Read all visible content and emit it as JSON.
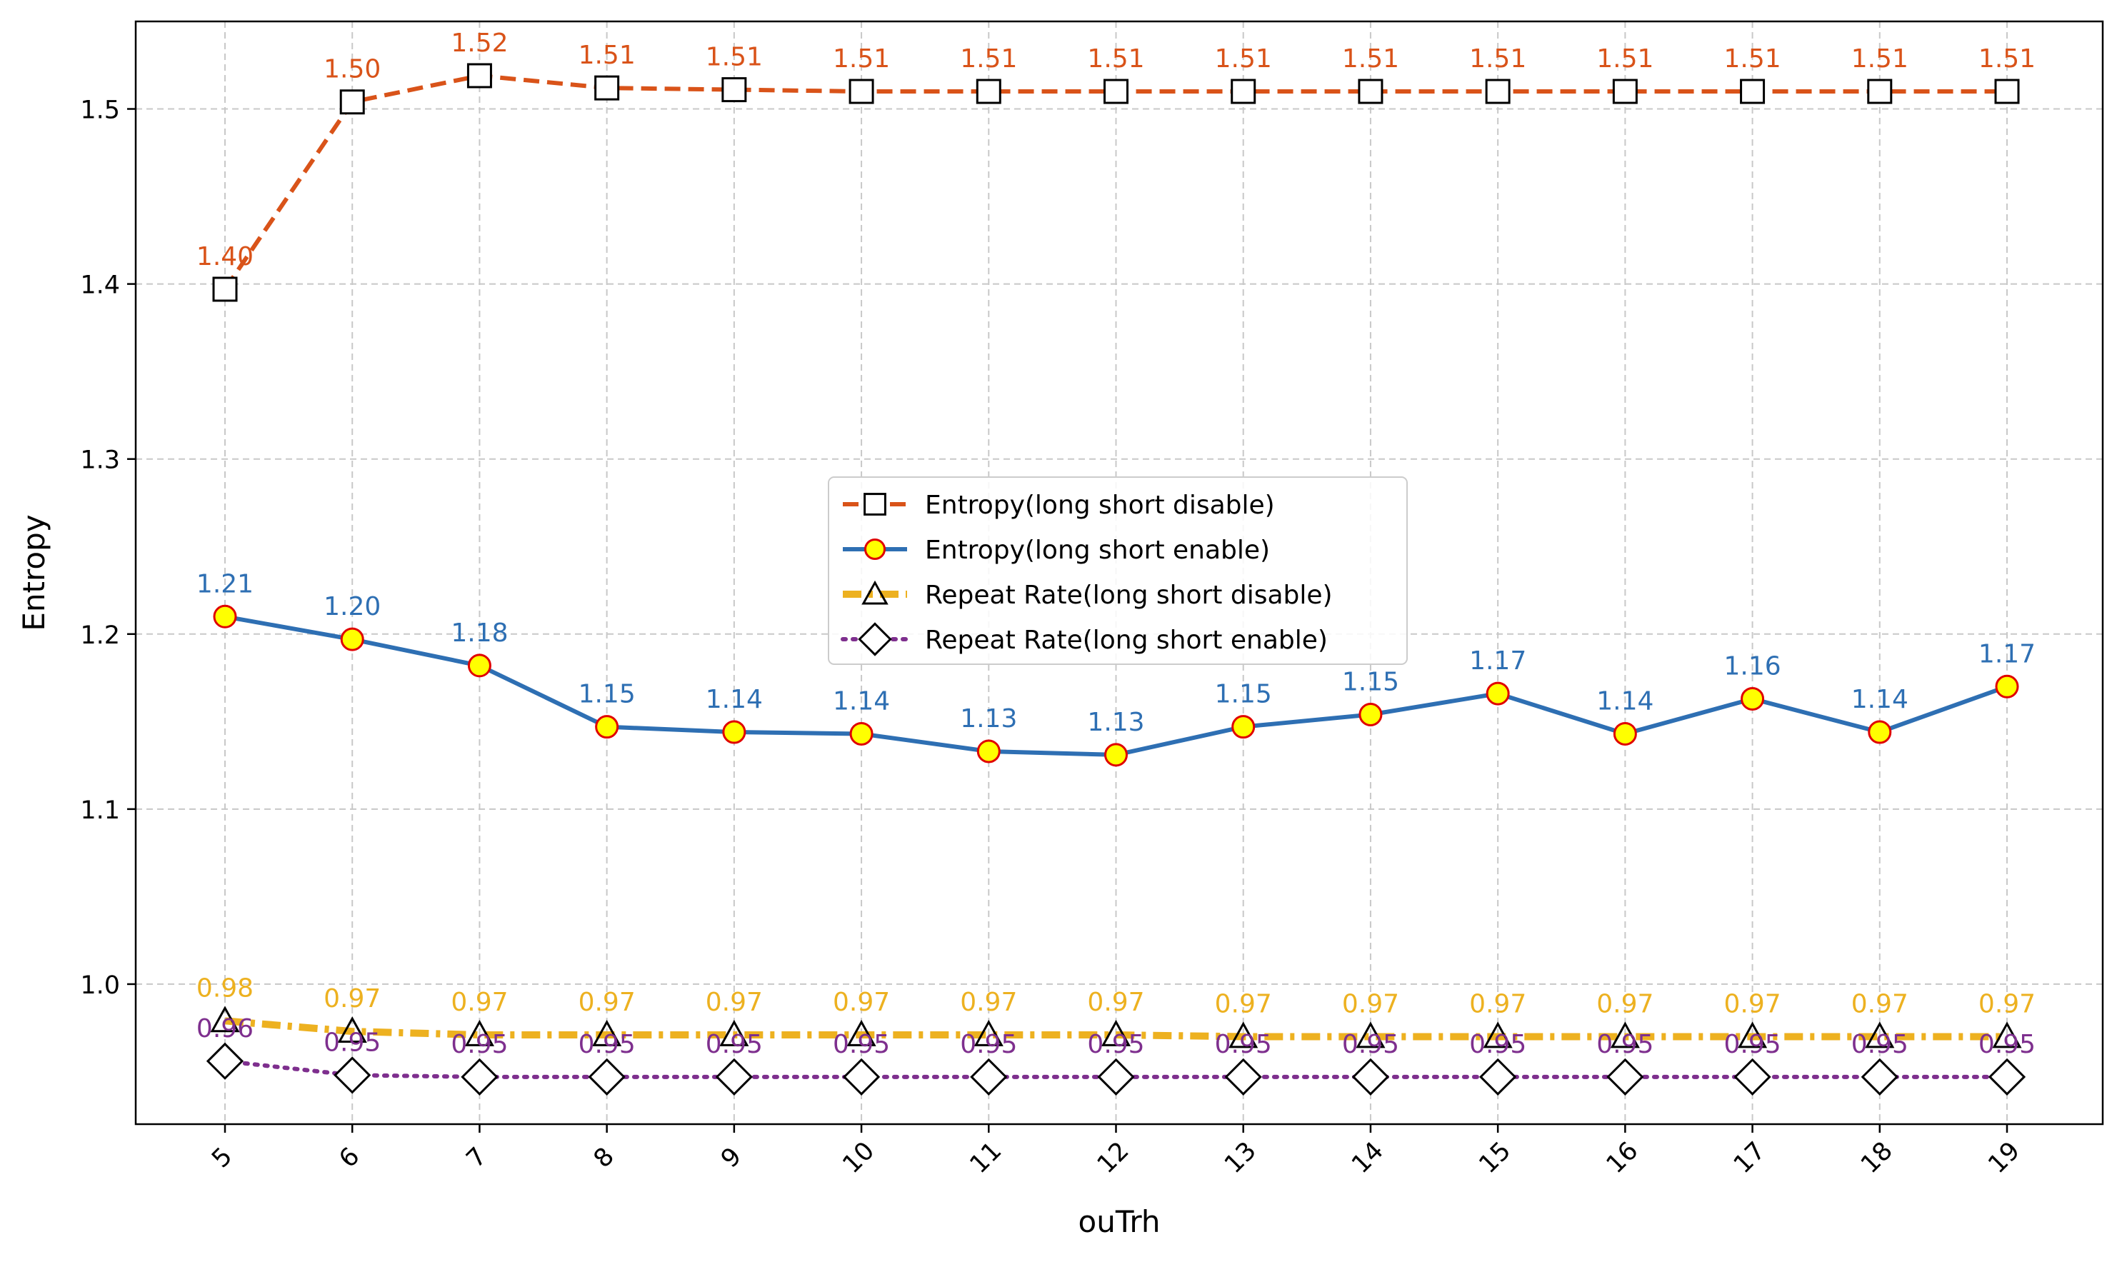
{
  "chart_data": {
    "type": "line",
    "title": "",
    "xlabel": "ouTrh",
    "ylabel": "Entropy",
    "x": [
      5,
      6,
      7,
      8,
      9,
      10,
      11,
      12,
      13,
      14,
      15,
      16,
      17,
      18,
      19
    ],
    "x_tick_labels": [
      "5",
      "6",
      "7",
      "8",
      "9",
      "10",
      "11",
      "12",
      "13",
      "14",
      "15",
      "16",
      "17",
      "18",
      "19"
    ],
    "y_ticks": [
      "1.0",
      "1.1",
      "1.2",
      "1.3",
      "1.4",
      "1.5"
    ],
    "ylim": [
      0.92,
      1.55
    ],
    "grid": true,
    "legend_position": "center",
    "series": [
      {
        "name": "Entropy(long short disable)",
        "values": [
          1.397,
          1.504,
          1.519,
          1.512,
          1.511,
          1.51,
          1.51,
          1.51,
          1.51,
          1.51,
          1.51,
          1.51,
          1.51,
          1.51,
          1.51
        ],
        "labels": [
          "1.40",
          "1.50",
          "1.52",
          "1.51",
          "1.51",
          "1.51",
          "1.51",
          "1.51",
          "1.51",
          "1.51",
          "1.51",
          "1.51",
          "1.51",
          "1.51",
          "1.51"
        ],
        "color": "#d95319",
        "marker": "square",
        "line_style": "dashed"
      },
      {
        "name": "Entropy(long short enable)",
        "values": [
          1.21,
          1.197,
          1.182,
          1.147,
          1.144,
          1.143,
          1.133,
          1.131,
          1.147,
          1.154,
          1.166,
          1.143,
          1.163,
          1.144,
          1.17
        ],
        "labels": [
          "1.21",
          "1.20",
          "1.18",
          "1.15",
          "1.14",
          "1.14",
          "1.13",
          "1.13",
          "1.15",
          "1.15",
          "1.17",
          "1.14",
          "1.16",
          "1.14",
          "1.17"
        ],
        "color": "#2e6fb3",
        "marker": "circle",
        "line_style": "solid"
      },
      {
        "name": "Repeat Rate(long short disable)",
        "values": [
          0.979,
          0.973,
          0.971,
          0.971,
          0.971,
          0.971,
          0.971,
          0.971,
          0.97,
          0.97,
          0.97,
          0.97,
          0.97,
          0.97,
          0.97
        ],
        "labels": [
          "0.98",
          "0.97",
          "0.97",
          "0.97",
          "0.97",
          "0.97",
          "0.97",
          "0.97",
          "0.97",
          "0.97",
          "0.97",
          "0.97",
          "0.97",
          "0.97",
          "0.97"
        ],
        "color": "#edb120",
        "marker": "triangle",
        "line_style": "dashdot"
      },
      {
        "name": "Repeat Rate(long short enable)",
        "values": [
          0.956,
          0.948,
          0.947,
          0.947,
          0.947,
          0.947,
          0.947,
          0.947,
          0.947,
          0.947,
          0.947,
          0.947,
          0.947,
          0.947,
          0.947
        ],
        "labels": [
          "0.96",
          "0.95",
          "0.95",
          "0.95",
          "0.95",
          "0.95",
          "0.95",
          "0.95",
          "0.95",
          "0.95",
          "0.95",
          "0.95",
          "0.95",
          "0.95",
          "0.95"
        ],
        "color": "#7e2f8e",
        "marker": "diamond",
        "line_style": "dotted"
      }
    ]
  }
}
